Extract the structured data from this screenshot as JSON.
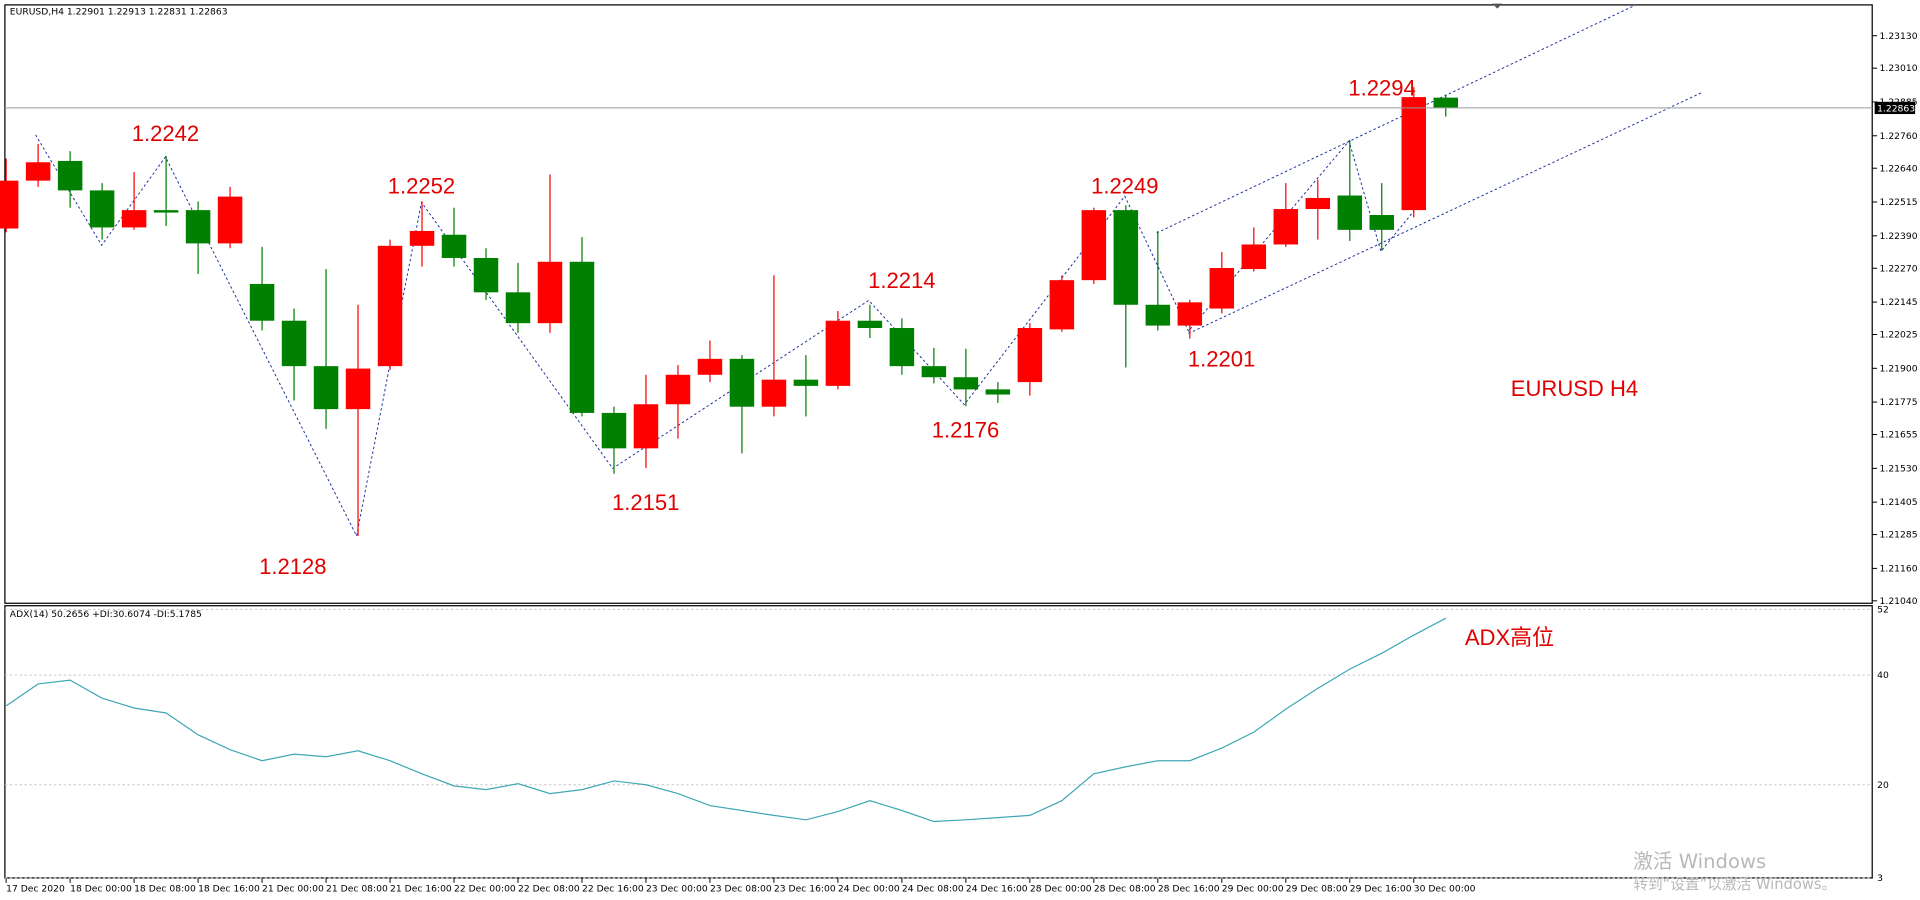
{
  "chart_data": [
    {
      "type": "candlestick",
      "header": "EURUSD,H4  1.22901 1.22913 1.22831 1.22863",
      "current_price": 1.22863,
      "up_color": "#ff0000",
      "down_color": "#008000",
      "categories": [
        "17 Dec 2020",
        null,
        "18 Dec 00:00",
        null,
        "18 Dec 08:00",
        null,
        "18 Dec 16:00",
        null,
        "21 Dec 00:00",
        null,
        "21 Dec 08:00",
        null,
        "21 Dec 16:00",
        null,
        "22 Dec 00:00",
        null,
        "22 Dec 08:00",
        null,
        "22 Dec 16:00",
        null,
        "23 Dec 00:00",
        null,
        "23 Dec 08:00",
        null,
        "23 Dec 16:00",
        null,
        "24 Dec 00:00",
        null,
        "24 Dec 08:00",
        null,
        "24 Dec 16:00",
        null,
        "28 Dec 00:00",
        null,
        "28 Dec 08:00",
        null,
        "28 Dec 16:00",
        null,
        "29 Dec 00:00",
        null,
        "29 Dec 08:00",
        null,
        "29 Dec 16:00",
        null,
        "30 Dec 00:00",
        null
      ],
      "open": [
        1.22417,
        1.22594,
        1.22667,
        1.22558,
        1.22421,
        1.22485,
        1.22485,
        1.22362,
        1.22212,
        1.22076,
        1.21908,
        1.21749,
        1.21908,
        1.22353,
        1.22394,
        1.22308,
        1.22181,
        1.22067,
        1.22294,
        1.21735,
        1.21604,
        1.21767,
        1.21876,
        1.21935,
        1.21758,
        1.21858,
        1.21835,
        1.22076,
        1.22049,
        1.21908,
        1.21867,
        1.21822,
        1.21849,
        1.22044,
        1.22226,
        1.22485,
        1.22135,
        1.22058,
        1.22121,
        1.22267,
        1.22358,
        1.22489,
        1.22539,
        1.22467,
        1.22485,
        1.22901
      ],
      "high": [
        1.22676,
        1.2273,
        1.22703,
        1.22585,
        1.22626,
        1.22685,
        1.22517,
        1.22571,
        1.22349,
        1.22121,
        1.22267,
        1.22135,
        1.22376,
        1.22517,
        1.22494,
        1.22344,
        1.2229,
        1.22617,
        1.22385,
        1.21758,
        1.21876,
        1.21912,
        1.22003,
        1.21949,
        1.22244,
        1.21949,
        1.22112,
        1.22135,
        1.22085,
        1.21976,
        1.21972,
        1.21849,
        1.22067,
        1.22244,
        1.22494,
        1.22503,
        1.22408,
        1.22153,
        1.2233,
        1.22421,
        1.22585,
        1.22598,
        1.22744,
        1.22585,
        1.2294,
        1.22913
      ],
      "low": [
        1.22403,
        1.22571,
        1.22494,
        1.22376,
        1.22412,
        1.22426,
        1.22249,
        1.22344,
        1.2204,
        1.21781,
        1.21676,
        1.2128,
        1.21894,
        1.22276,
        1.22276,
        1.22153,
        1.22031,
        1.22031,
        1.21722,
        1.2151,
        1.21531,
        1.2164,
        1.21849,
        1.21585,
        1.21722,
        1.21722,
        1.21822,
        1.22012,
        1.21876,
        1.21844,
        1.2176,
        1.21772,
        1.21799,
        1.22035,
        1.22212,
        1.21903,
        1.2204,
        1.2201,
        1.22103,
        1.22258,
        1.22349,
        1.22376,
        1.22371,
        1.22335,
        1.22458,
        1.22831
      ],
      "close": [
        1.22594,
        1.22662,
        1.22558,
        1.22421,
        1.22485,
        1.22476,
        1.22362,
        1.22535,
        1.22076,
        1.21908,
        1.21749,
        1.21899,
        1.22353,
        1.22408,
        1.22308,
        1.22181,
        1.22067,
        1.22294,
        1.21735,
        1.21604,
        1.21767,
        1.21876,
        1.21935,
        1.21758,
        1.21858,
        1.21835,
        1.22076,
        1.22049,
        1.21908,
        1.21867,
        1.21822,
        1.21803,
        1.22049,
        1.22226,
        1.22485,
        1.22135,
        1.22058,
        1.22144,
        1.22271,
        1.22358,
        1.22489,
        1.2253,
        1.22412,
        1.22412,
        1.22903,
        1.22863
      ],
      "ylim": [
        1.21031,
        1.23244
      ],
      "yticks": [
        {
          "value": 1.2313,
          "label": "1.23130"
        },
        {
          "value": 1.2301,
          "label": "1.23010"
        },
        {
          "value": 1.22885,
          "label": "1.22885"
        },
        {
          "value": 1.2276,
          "label": "1.22760"
        },
        {
          "value": 1.2264,
          "label": "1.22640"
        },
        {
          "value": 1.22515,
          "label": "1.22515"
        },
        {
          "value": 1.2239,
          "label": "1.22390"
        },
        {
          "value": 1.2227,
          "label": "1.22270"
        },
        {
          "value": 1.22145,
          "label": "1.22145"
        },
        {
          "value": 1.22025,
          "label": "1.22025"
        },
        {
          "value": 1.219,
          "label": "1.21900"
        },
        {
          "value": 1.21775,
          "label": "1.21775"
        },
        {
          "value": 1.21655,
          "label": "1.21655"
        },
        {
          "value": 1.2153,
          "label": "1.21530"
        },
        {
          "value": 1.21405,
          "label": "1.21405"
        },
        {
          "value": 1.21285,
          "label": "1.21285"
        },
        {
          "value": 1.2116,
          "label": "1.21160"
        },
        {
          "value": 1.2104,
          "label": "1.21040"
        }
      ],
      "annotations": [
        "1.2242",
        "1.2252",
        "1.2128",
        "1.2151",
        "1.2214",
        "1.2176",
        "1.2249",
        "1.2201",
        "1.2294",
        "EURUSD H4"
      ]
    },
    {
      "type": "line",
      "header": "ADX(14) 50.2656 +DI:30.6074 -DI:5.1785",
      "color": "#3fa7b5",
      "values": [
        34.4,
        38.4,
        39.1,
        35.8,
        34.0,
        33.1,
        29.1,
        26.4,
        24.4,
        25.6,
        25.1,
        26.2,
        24.4,
        22.0,
        19.8,
        19.1,
        20.2,
        18.4,
        19.1,
        20.7,
        20.0,
        18.4,
        16.2,
        15.3,
        14.4,
        13.6,
        15.1,
        17.1,
        15.3,
        13.3,
        13.6,
        14.0,
        14.4,
        17.1,
        22.0,
        23.3,
        24.4,
        24.4,
        26.7,
        29.6,
        33.8,
        37.6,
        41.1,
        44.0,
        47.3,
        50.4
      ],
      "ylim": [
        3,
        52
      ],
      "yticks": [
        52,
        40,
        20,
        3
      ],
      "grid": true,
      "annotations": [
        "ADX高位"
      ]
    }
  ],
  "watermark": {
    "title": "激活 Windows",
    "subtitle": "转到“设置”以激活 Windows。"
  }
}
